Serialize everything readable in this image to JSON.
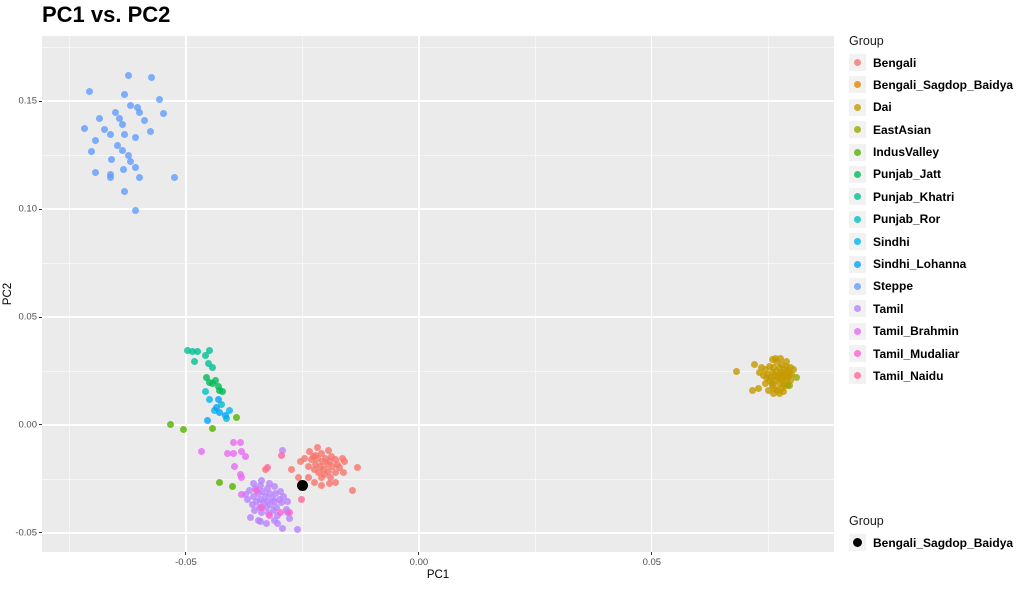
{
  "title": "PC1 vs. PC2",
  "panel": {
    "background": "#EBEBEB",
    "grid_color": "#FFFFFF",
    "tick_color": "#333333",
    "tick_label_color": "#4D4D4D",
    "legend_key_background": "#F2F2F2"
  },
  "chart_data": {
    "type": "scatter",
    "title": "PC1 vs. PC2",
    "xlabel": "PC1",
    "ylabel": "PC2",
    "xlim": [
      -0.0809,
      0.0891
    ],
    "ylim": [
      -0.0588,
      0.1801
    ],
    "grid": true,
    "x_ticks": [
      {
        "v": -0.05,
        "label": "-0.05"
      },
      {
        "v": 0,
        "label": "0.00"
      },
      {
        "v": 0.05,
        "label": "0.05"
      }
    ],
    "y_ticks": [
      {
        "v": 0.15,
        "label": "0.15"
      },
      {
        "v": 0.1,
        "label": "0.10"
      },
      {
        "v": 0.05,
        "label": "0.05"
      },
      {
        "v": 0,
        "label": "0.00"
      },
      {
        "v": -0.05,
        "label": "-0.05"
      }
    ],
    "x_minor": [
      -0.075,
      -0.025,
      0.025,
      0.075
    ],
    "y_minor": [
      0.175,
      0.125,
      0.075,
      0.025,
      -0.025
    ],
    "point_size": 7,
    "point_alpha": 0.8,
    "legend": {
      "title": "Group",
      "position": "right"
    },
    "series": [
      {
        "name": "Bengali",
        "color": "#F8766D",
        "points": [
          [
            -0.0255,
            -0.0171
          ],
          [
            -0.0245,
            -0.0153
          ],
          [
            -0.0238,
            -0.019
          ],
          [
            -0.0234,
            -0.0125
          ],
          [
            -0.023,
            -0.0162
          ],
          [
            -0.0227,
            -0.0148
          ],
          [
            -0.0225,
            -0.0208
          ],
          [
            -0.0223,
            -0.0139
          ],
          [
            -0.0221,
            -0.0181
          ],
          [
            -0.0217,
            -0.0106
          ],
          [
            -0.0217,
            -0.0153
          ],
          [
            -0.0215,
            -0.0218
          ],
          [
            -0.0212,
            -0.019
          ],
          [
            -0.021,
            -0.0245
          ],
          [
            -0.0208,
            -0.0134
          ],
          [
            -0.0206,
            -0.0167
          ],
          [
            -0.0204,
            -0.0204
          ],
          [
            -0.0202,
            -0.0227
          ],
          [
            -0.02,
            -0.0153
          ],
          [
            -0.0197,
            -0.0185
          ],
          [
            -0.0195,
            -0.0116
          ],
          [
            -0.0193,
            -0.0213
          ],
          [
            -0.0191,
            -0.0171
          ],
          [
            -0.0189,
            -0.0241
          ],
          [
            -0.0187,
            -0.0144
          ],
          [
            -0.0185,
            -0.019
          ],
          [
            -0.018,
            -0.0162
          ],
          [
            -0.0178,
            -0.0218
          ],
          [
            -0.0174,
            -0.0181
          ],
          [
            -0.017,
            -0.0199
          ],
          [
            -0.0165,
            -0.0153
          ],
          [
            -0.0161,
            -0.0222
          ],
          [
            -0.0191,
            -0.0273
          ],
          [
            -0.0208,
            -0.0282
          ],
          [
            -0.0225,
            -0.0264
          ],
          [
            -0.0238,
            -0.0245
          ],
          [
            -0.018,
            -0.0264
          ],
          [
            -0.0159,
            -0.0171
          ],
          [
            -0.0131,
            -0.0199
          ],
          [
            -0.0142,
            -0.0301
          ],
          [
            -0.033,
            -0.0208
          ],
          [
            -0.0273,
            -0.0208
          ],
          [
            -0.0258,
            -0.0245
          ]
        ]
      },
      {
        "name": "Bengali_Sagdop_Baidya",
        "color": "#E58700",
        "points": [
          [
            -0.0249,
            -0.0282
          ]
        ]
      },
      {
        "name": "Dai",
        "color": "#C49A00",
        "points": [
          [
            0.0682,
            0.025
          ],
          [
            0.0721,
            0.0278
          ],
          [
            0.0715,
            0.0162
          ],
          [
            0.0728,
            0.0171
          ],
          [
            0.0743,
            0.0255
          ],
          [
            0.0749,
            0.0236
          ],
          [
            0.0753,
            0.0273
          ],
          [
            0.0755,
            0.0218
          ],
          [
            0.0758,
            0.0245
          ],
          [
            0.076,
            0.0194
          ],
          [
            0.0762,
            0.0264
          ],
          [
            0.0764,
            0.0231
          ],
          [
            0.0766,
            0.0208
          ],
          [
            0.0768,
            0.0292
          ],
          [
            0.0768,
            0.025
          ],
          [
            0.077,
            0.0222
          ],
          [
            0.0773,
            0.019
          ],
          [
            0.0775,
            0.0264
          ],
          [
            0.0775,
            0.0236
          ],
          [
            0.0777,
            0.0213
          ],
          [
            0.0779,
            0.0282
          ],
          [
            0.0779,
            0.0245
          ],
          [
            0.0781,
            0.0222
          ],
          [
            0.0783,
            0.019
          ],
          [
            0.0785,
            0.0259
          ],
          [
            0.0785,
            0.0231
          ],
          [
            0.0788,
            0.0208
          ],
          [
            0.079,
            0.0273
          ],
          [
            0.079,
            0.0241
          ],
          [
            0.0792,
            0.0218
          ],
          [
            0.0794,
            0.025
          ],
          [
            0.0796,
            0.0227
          ],
          [
            0.0798,
            0.0264
          ],
          [
            0.0798,
            0.0208
          ],
          [
            0.08,
            0.0236
          ],
          [
            0.0803,
            0.0255
          ],
          [
            0.077,
            0.0162
          ],
          [
            0.0764,
            0.0171
          ],
          [
            0.0758,
            0.0181
          ],
          [
            0.0779,
            0.0171
          ],
          [
            0.0785,
            0.0181
          ],
          [
            0.0753,
            0.0204
          ],
          [
            0.0747,
            0.0218
          ],
          [
            0.074,
            0.0227
          ],
          [
            0.0745,
            0.0194
          ],
          [
            0.0751,
            0.0162
          ],
          [
            0.0762,
            0.0148
          ],
          [
            0.0773,
            0.0148
          ],
          [
            0.0783,
            0.0157
          ],
          [
            0.0792,
            0.0185
          ],
          [
            0.0732,
            0.0241
          ],
          [
            0.0736,
            0.0264
          ],
          [
            0.0766,
            0.031
          ],
          [
            0.0777,
            0.031
          ],
          [
            0.0788,
            0.0296
          ],
          [
            0.076,
            0.0301
          ]
        ]
      },
      {
        "name": "EastAsian",
        "color": "#99A800",
        "points": [
          [
            0.0811,
            0.0222
          ],
          [
            0.0796,
            0.0185
          ]
        ]
      },
      {
        "name": "IndusValley",
        "color": "#53B400",
        "points": [
          [
            -0.0534,
            0.0
          ],
          [
            -0.0506,
            -0.0023
          ],
          [
            -0.0444,
            -0.0014
          ],
          [
            -0.0391,
            0.0037
          ],
          [
            -0.0427,
            -0.0264
          ],
          [
            -0.0401,
            -0.0287
          ]
        ]
      },
      {
        "name": "Punjab_Jatt",
        "color": "#00BC56",
        "points": [
          [
            -0.0455,
            0.0218
          ],
          [
            -0.0449,
            0.0199
          ],
          [
            -0.0442,
            0.0194
          ],
          [
            -0.0436,
            0.0208
          ],
          [
            -0.0431,
            0.0176
          ],
          [
            -0.0427,
            0.0162
          ],
          [
            -0.0421,
            0.0153
          ]
        ]
      },
      {
        "name": "Punjab_Khatri",
        "color": "#00C094",
        "points": [
          [
            -0.0496,
            0.0343
          ],
          [
            -0.0487,
            0.0338
          ],
          [
            -0.0476,
            0.0338
          ],
          [
            -0.0481,
            0.0296
          ],
          [
            -0.0457,
            0.0324
          ],
          [
            -0.0449,
            0.0347
          ],
          [
            -0.0451,
            0.0287
          ],
          [
            -0.0444,
            0.0264
          ]
        ]
      },
      {
        "name": "Punjab_Ror",
        "color": "#00BFC4",
        "points": [
          [
            -0.0459,
            0.0153
          ],
          [
            -0.0423,
            0.0093
          ],
          [
            -0.0412,
            0.0032
          ]
        ]
      },
      {
        "name": "Sindhi",
        "color": "#00B5ED",
        "points": [
          [
            -0.0449,
            0.0116
          ],
          [
            -0.0438,
            0.0069
          ],
          [
            -0.0406,
            0.0069
          ]
        ]
      },
      {
        "name": "Sindhi_Lohanna",
        "color": "#00A5FF",
        "points": [
          [
            -0.0431,
            0.0116
          ],
          [
            -0.0427,
            0.006
          ],
          [
            -0.0416,
            0.0046
          ],
          [
            -0.0453,
            0.0023
          ],
          [
            -0.0434,
            0.0079
          ]
        ]
      },
      {
        "name": "Steppe",
        "color": "#619CFF",
        "points": [
          [
            -0.0624,
            0.162
          ],
          [
            -0.0575,
            0.1611
          ],
          [
            -0.0706,
            0.1542
          ],
          [
            -0.0631,
            0.1528
          ],
          [
            -0.0556,
            0.1505
          ],
          [
            -0.062,
            0.1481
          ],
          [
            -0.0605,
            0.1468
          ],
          [
            -0.0652,
            0.1449
          ],
          [
            -0.0599,
            0.1449
          ],
          [
            -0.0549,
            0.1444
          ],
          [
            -0.0642,
            0.1421
          ],
          [
            -0.0685,
            0.1421
          ],
          [
            -0.0588,
            0.1412
          ],
          [
            -0.0637,
            0.1389
          ],
          [
            -0.0717,
            0.1375
          ],
          [
            -0.0674,
            0.1366
          ],
          [
            -0.0577,
            0.1361
          ],
          [
            -0.0663,
            0.1343
          ],
          [
            -0.0631,
            0.1343
          ],
          [
            -0.0609,
            0.1329
          ],
          [
            -0.0695,
            0.1319
          ],
          [
            -0.0646,
            0.1296
          ],
          [
            -0.0637,
            0.1273
          ],
          [
            -0.0702,
            0.1264
          ],
          [
            -0.0624,
            0.125
          ],
          [
            -0.0659,
            0.1227
          ],
          [
            -0.062,
            0.1218
          ],
          [
            -0.0609,
            0.119
          ],
          [
            -0.0635,
            0.1181
          ],
          [
            -0.0695,
            0.1171
          ],
          [
            -0.0663,
            0.1162
          ],
          [
            -0.0599,
            0.1144
          ],
          [
            -0.0524,
            0.1148
          ],
          [
            -0.0663,
            0.1144
          ],
          [
            -0.0631,
            0.1079
          ],
          [
            -0.0609,
            0.0991
          ]
        ]
      },
      {
        "name": "Tamil",
        "color": "#B983FF",
        "points": [
          [
            -0.0373,
            -0.0324
          ],
          [
            -0.0367,
            -0.0347
          ],
          [
            -0.0363,
            -0.0301
          ],
          [
            -0.0358,
            -0.037
          ],
          [
            -0.0354,
            -0.0333
          ],
          [
            -0.0352,
            -0.0394
          ],
          [
            -0.035,
            -0.0292
          ],
          [
            -0.0348,
            -0.0356
          ],
          [
            -0.0345,
            -0.0319
          ],
          [
            -0.0343,
            -0.038
          ],
          [
            -0.0341,
            -0.0278
          ],
          [
            -0.0339,
            -0.0343
          ],
          [
            -0.0337,
            -0.0403
          ],
          [
            -0.0335,
            -0.0306
          ],
          [
            -0.0333,
            -0.0361
          ],
          [
            -0.033,
            -0.0329
          ],
          [
            -0.0328,
            -0.0384
          ],
          [
            -0.0326,
            -0.0296
          ],
          [
            -0.0324,
            -0.0352
          ],
          [
            -0.0322,
            -0.0412
          ],
          [
            -0.032,
            -0.0315
          ],
          [
            -0.0318,
            -0.037
          ],
          [
            -0.0315,
            -0.0338
          ],
          [
            -0.0313,
            -0.0394
          ],
          [
            -0.0311,
            -0.0287
          ],
          [
            -0.0309,
            -0.0356
          ],
          [
            -0.0307,
            -0.0319
          ],
          [
            -0.0305,
            -0.038
          ],
          [
            -0.0303,
            -0.0421
          ],
          [
            -0.03,
            -0.0343
          ],
          [
            -0.0298,
            -0.0306
          ],
          [
            -0.0294,
            -0.0361
          ],
          [
            -0.029,
            -0.0329
          ],
          [
            -0.0285,
            -0.0389
          ],
          [
            -0.0281,
            -0.0352
          ],
          [
            -0.0345,
            -0.044
          ],
          [
            -0.0328,
            -0.0454
          ],
          [
            -0.0311,
            -0.044
          ],
          [
            -0.0292,
            -0.0477
          ],
          [
            -0.0341,
            -0.0449
          ],
          [
            -0.0303,
            -0.0454
          ],
          [
            -0.0277,
            -0.0431
          ],
          [
            -0.0356,
            -0.0269
          ],
          [
            -0.0337,
            -0.0255
          ],
          [
            -0.032,
            -0.0269
          ],
          [
            -0.0292,
            -0.0116
          ],
          [
            -0.026,
            -0.0486
          ],
          [
            -0.0361,
            -0.0426
          ],
          [
            -0.0283,
            -0.0403
          ]
        ]
      },
      {
        "name": "Tamil_Brahmin",
        "color": "#E76BF3",
        "points": [
          [
            -0.0399,
            -0.0079
          ],
          [
            -0.0384,
            -0.0079
          ],
          [
            -0.041,
            -0.013
          ],
          [
            -0.0399,
            -0.013
          ],
          [
            -0.038,
            -0.0125
          ],
          [
            -0.0373,
            -0.0148
          ],
          [
            -0.0395,
            -0.0194
          ],
          [
            -0.038,
            -0.0241
          ],
          [
            -0.038,
            -0.0324
          ],
          [
            -0.0384,
            -0.0231
          ],
          [
            -0.0466,
            -0.0125
          ]
        ]
      },
      {
        "name": "Tamil_Mudaliar",
        "color": "#FD61D1",
        "points": [
          [
            -0.0348,
            -0.0301
          ],
          [
            -0.0298,
            -0.0407
          ],
          [
            -0.032,
            -0.0417
          ],
          [
            -0.0337,
            -0.0384
          ],
          [
            -0.0277,
            -0.0403
          ]
        ]
      },
      {
        "name": "Tamil_Naidu",
        "color": "#FF689E",
        "points": [
          [
            -0.0294,
            -0.0139
          ],
          [
            -0.0326,
            -0.0199
          ],
          [
            -0.0251,
            -0.0347
          ]
        ]
      }
    ],
    "highlight": {
      "legend_title": "Group",
      "name": "Bengali_Sagdop_Baidya",
      "color": "#000000",
      "point_size": 11,
      "points": [
        [
          -0.0249,
          -0.0282
        ]
      ]
    }
  }
}
